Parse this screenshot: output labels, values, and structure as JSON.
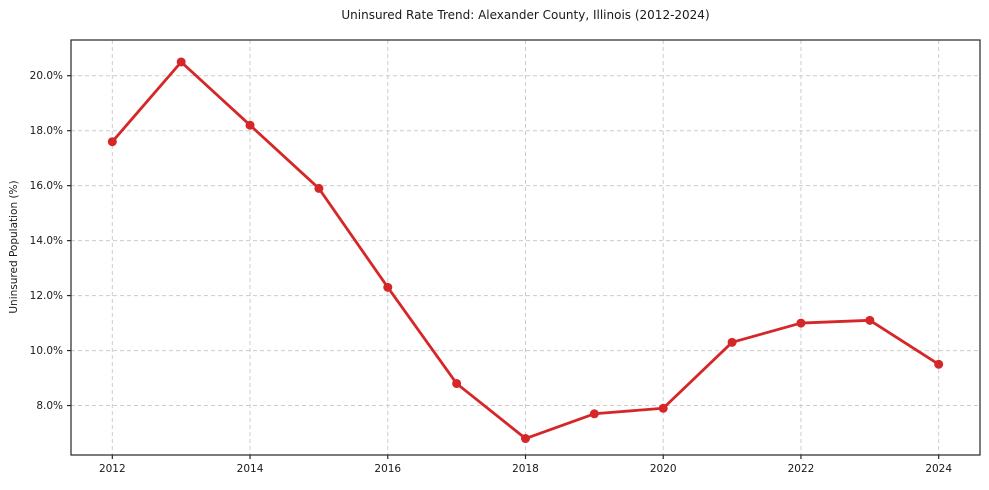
{
  "chart_data": {
    "type": "line",
    "title": "Uninsured Rate Trend: Alexander County, Illinois (2012-2024)",
    "xlabel": "",
    "ylabel": "Uninsured Population (%)",
    "x": [
      2012,
      2013,
      2014,
      2015,
      2016,
      2017,
      2018,
      2019,
      2020,
      2021,
      2022,
      2023,
      2024
    ],
    "values": [
      17.6,
      20.5,
      18.2,
      15.9,
      12.3,
      8.8,
      6.8,
      7.7,
      7.9,
      10.3,
      11.0,
      11.1,
      9.5
    ],
    "xlim": [
      2011.4,
      2024.6
    ],
    "ylim": [
      6.2,
      21.3
    ],
    "xticks": [
      2012,
      2014,
      2016,
      2018,
      2020,
      2022,
      2024
    ],
    "xtick_labels": [
      "2012",
      "2014",
      "2016",
      "2018",
      "2020",
      "2022",
      "2024"
    ],
    "yticks": [
      8,
      10,
      12,
      14,
      16,
      18,
      20
    ],
    "ytick_labels": [
      "8.0%",
      "10.0%",
      "12.0%",
      "14.0%",
      "16.0%",
      "18.0%",
      "20.0%"
    ],
    "grid": true,
    "grid_style": "dashed",
    "legend_position": "none",
    "colors": {
      "line": "#d62728",
      "marker": "#d62728",
      "grid": "#cccccc",
      "spine": "#262626",
      "tick_text": "#1a1a1a",
      "background": "#ffffff"
    },
    "line_width": 2.8,
    "marker_size": 4.5
  }
}
